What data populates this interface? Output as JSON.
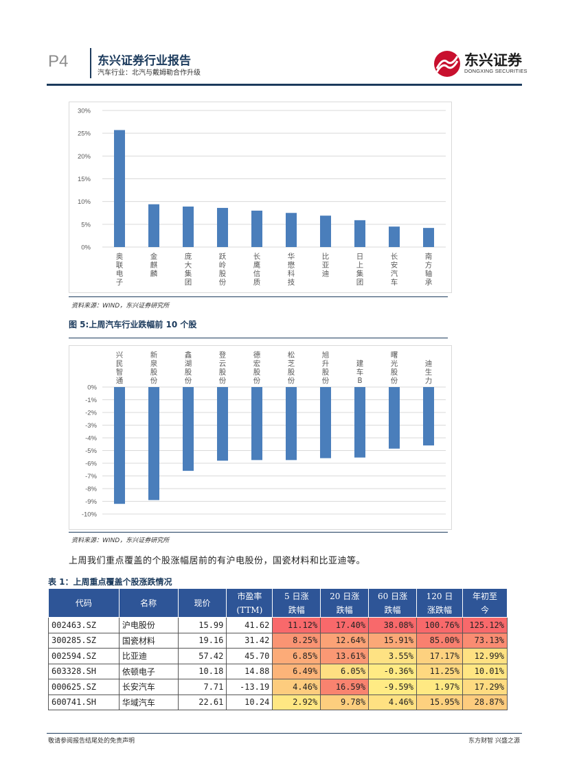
{
  "header": {
    "page": "P4",
    "title": "东兴证券行业报告",
    "subtitle": "汽车行业：北汽与戴姆勒合作升级",
    "logo_cn": "东兴证券",
    "logo_en": "DONGXING SECURITIES"
  },
  "figure1": {
    "source": "资料来源：WIND，东兴证券研究所"
  },
  "figure2": {
    "title": "图 5:上周汽车行业跌幅前 10 个股",
    "source": "资料来源：WIND，东兴证券研究所"
  },
  "chart_data": [
    {
      "type": "bar",
      "categories": [
        "奥联电子",
        "金麒麟",
        "庞大集团",
        "跃岭股份",
        "长鹰信质",
        "华懋科技",
        "比亚迪",
        "日上集团",
        "长安汽车",
        "南方轴承"
      ],
      "values": [
        25.7,
        9.4,
        8.9,
        8.6,
        8.0,
        7.5,
        6.9,
        5.9,
        4.5,
        4.2
      ],
      "ylim": [
        0,
        30
      ],
      "yticks": [
        "30%",
        "25%",
        "20%",
        "15%",
        "10%",
        "5%",
        "0%"
      ],
      "yticks_values": [
        30,
        25,
        20,
        15,
        10,
        5,
        0
      ],
      "color": "#4a7ebb",
      "grid": true
    },
    {
      "type": "bar",
      "categories": [
        "兴民智通",
        "新泉股份",
        "鑫湖股份",
        "登云股份",
        "德宏股份",
        "松芝股份",
        "旭升股份",
        "建车B",
        "曙光股份",
        "迪生力"
      ],
      "values": [
        -9.2,
        -8.9,
        -6.6,
        -5.8,
        -5.75,
        -5.75,
        -5.6,
        -5.55,
        -4.85,
        -4.6
      ],
      "ylim": [
        -10,
        0
      ],
      "yticks": [
        "0%",
        "-1%",
        "-2%",
        "-3%",
        "-4%",
        "-5%",
        "-6%",
        "-7%",
        "-8%",
        "-9%",
        "-10%"
      ],
      "yticks_values": [
        0,
        -1,
        -2,
        -3,
        -4,
        -5,
        -6,
        -7,
        -8,
        -9,
        -10
      ],
      "color": "#4a7ebb",
      "grid": true
    }
  ],
  "body_text": "上周我们重点覆盖的个股涨幅居前的有沪电股份，国瓷材料和比亚迪等。",
  "table": {
    "title": "表 1：上周重点覆盖个股涨跌情况",
    "headers": [
      "代码",
      "名称",
      "现价",
      "市盈率(TTM)",
      "5 日涨跌幅",
      "20 日涨跌幅",
      "60 日涨跌幅",
      "120 日涨跌幅",
      "年初至今"
    ],
    "header_lines": [
      [
        "代码"
      ],
      [
        "名称"
      ],
      [
        "现价"
      ],
      [
        "市盈率",
        "(TTM)"
      ],
      [
        "5 日涨",
        "跌幅"
      ],
      [
        "20 日涨",
        "跌幅"
      ],
      [
        "60 日涨",
        "跌幅"
      ],
      [
        "120 日",
        "涨跌幅"
      ],
      [
        "年初至",
        "今"
      ]
    ],
    "rows": [
      [
        "002463.SZ",
        "沪电股份",
        "15.99",
        "41.62",
        "11.12%",
        "17.40%",
        "38.08%",
        "100.76%",
        "125.12%"
      ],
      [
        "300285.SZ",
        "国瓷材料",
        "19.16",
        "31.42",
        "8.25%",
        "12.64%",
        "15.91%",
        "85.00%",
        "73.13%"
      ],
      [
        "002594.SZ",
        "比亚迪",
        "57.42",
        "45.70",
        "6.85%",
        "13.61%",
        "3.55%",
        "17.17%",
        "12.99%"
      ],
      [
        "603328.SH",
        "依顿电子",
        "10.18",
        "14.88",
        "6.49%",
        "6.05%",
        "-0.36%",
        "11.25%",
        "10.01%"
      ],
      [
        "000625.SZ",
        "长安汽车",
        "7.71",
        "-13.19",
        "4.46%",
        "16.59%",
        "-9.59%",
        "1.97%",
        "17.29%"
      ],
      [
        "600741.SH",
        "华域汽车",
        "22.61",
        "10.24",
        "2.92%",
        "9.78%",
        "4.46%",
        "15.95%",
        "28.87%"
      ]
    ],
    "cell_colors": [
      [
        "#f8696b",
        "#f8696b",
        "#f8696b",
        "#f8696b",
        "#f8696b"
      ],
      [
        "#fa9473",
        "#fba276",
        "#fba877",
        "#f9806f",
        "#fa8c72"
      ],
      [
        "#fcab78",
        "#fa9874",
        "#fee283",
        "#fdd17f",
        "#fee182"
      ],
      [
        "#fcb479",
        "#fedf82",
        "#ffeb84",
        "#fed880",
        "#ffe683"
      ],
      [
        "#fdcc7e",
        "#f9836f",
        "#ffeb84",
        "#ffe983",
        "#fedb81"
      ],
      [
        "#ffe783",
        "#fdce7e",
        "#fee182",
        "#fdd17f",
        "#fdcc7e"
      ]
    ]
  },
  "footer": {
    "left": "敬请参阅报告结尾处的免责声明",
    "right": "东方财智 兴盛之源"
  }
}
